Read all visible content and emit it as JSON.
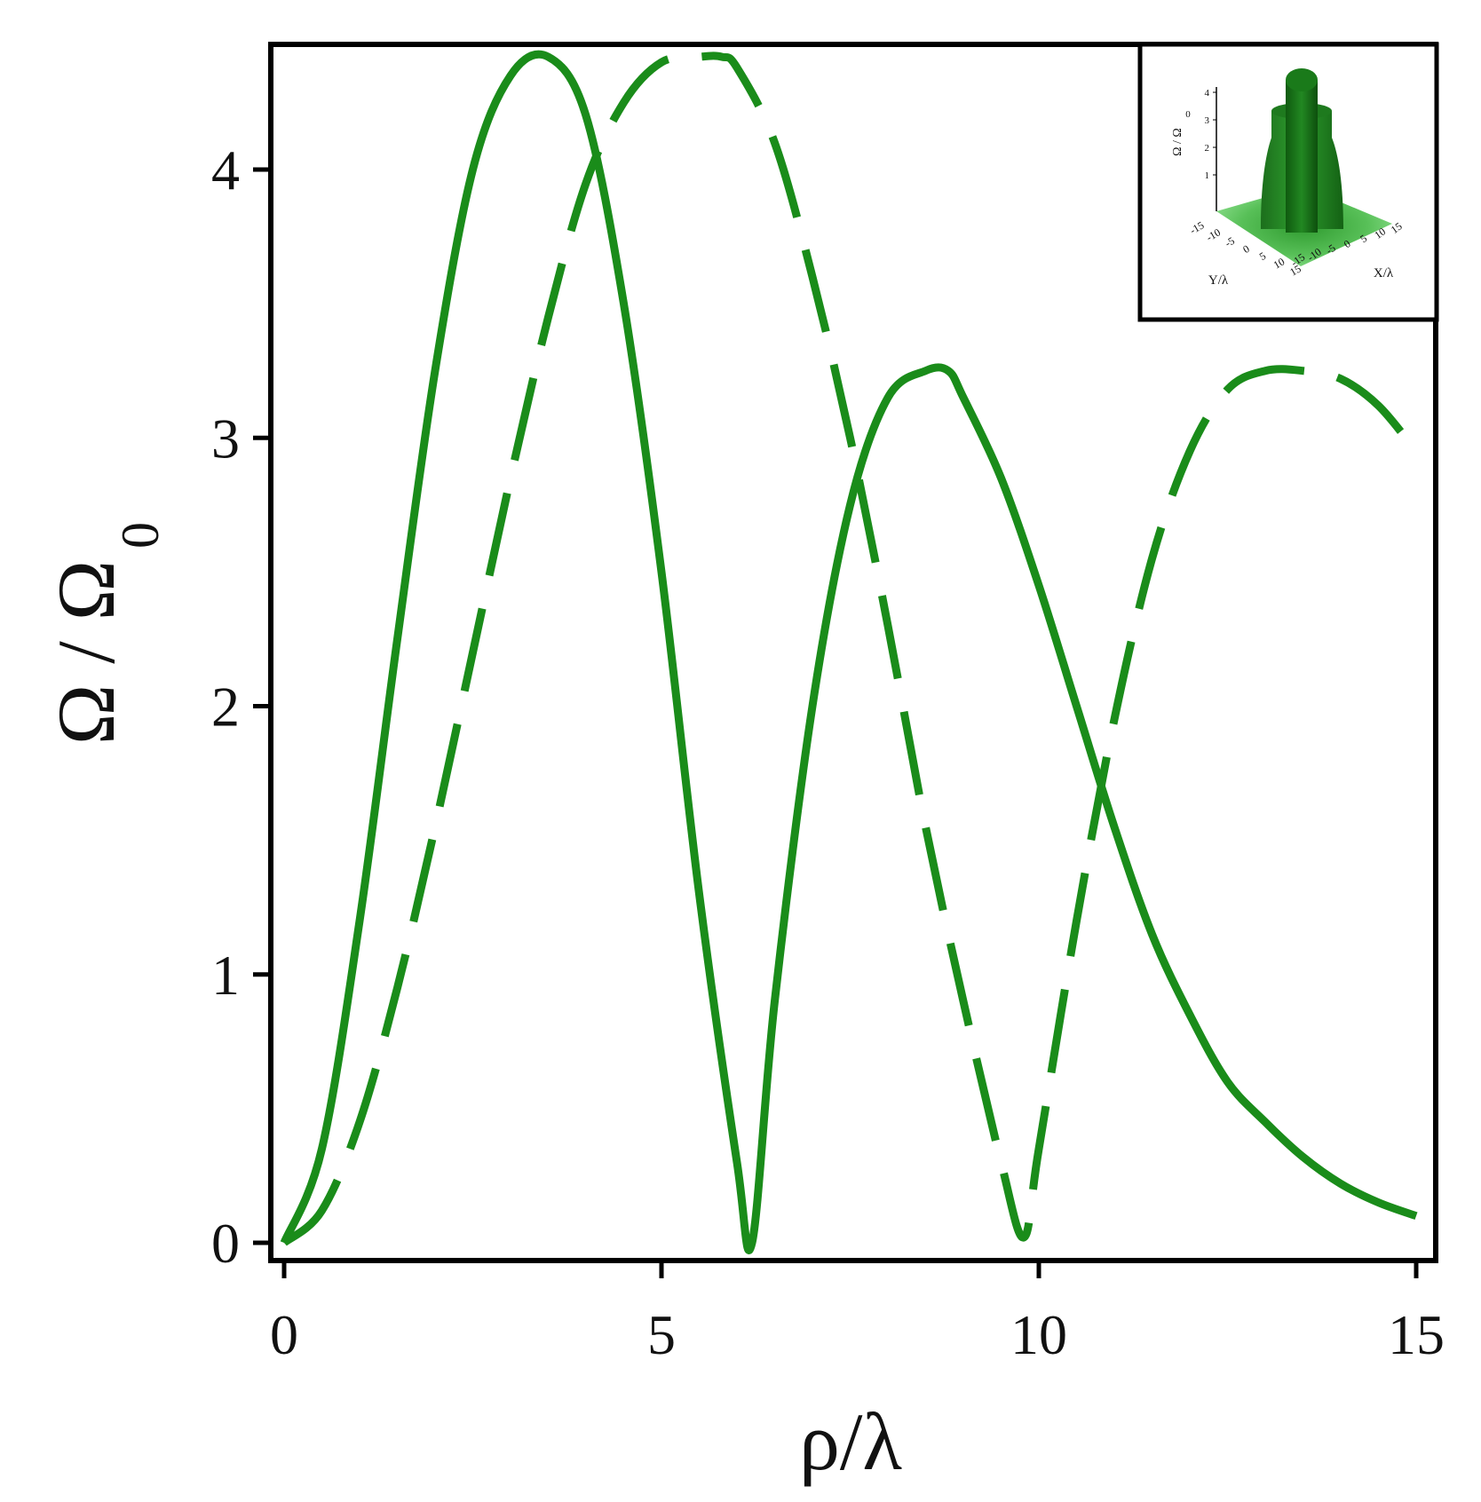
{
  "chart_data": [
    {
      "type": "line",
      "xlabel": "ρ/λ",
      "ylabel_main": "Ω / Ω",
      "ylabel_sub": "0",
      "xlim": [
        0,
        15
      ],
      "ylim": [
        0,
        4.45
      ],
      "x_ticks": [
        "0",
        "5",
        "10",
        "15"
      ],
      "y_ticks": [
        "0",
        "1",
        "2",
        "3",
        "4"
      ],
      "grid": false,
      "legend": "none",
      "color": "#1a8c1a",
      "series": [
        {
          "style": "solid",
          "x": [
            0,
            0.5,
            1,
            1.5,
            2,
            2.5,
            3,
            3.5,
            4,
            4.5,
            5,
            5.5,
            6,
            6.2,
            6.5,
            7,
            7.5,
            8,
            8.5,
            8.8,
            9,
            9.5,
            10,
            10.5,
            11,
            11.5,
            12,
            12.5,
            13,
            13.5,
            14,
            14.5,
            15
          ],
          "y": [
            0,
            0.35,
            1.2,
            2.25,
            3.25,
            4.0,
            4.35,
            4.42,
            4.2,
            3.5,
            2.5,
            1.3,
            0.3,
            0.0,
            0.9,
            2.0,
            2.75,
            3.15,
            3.25,
            3.25,
            3.15,
            2.85,
            2.45,
            2.0,
            1.55,
            1.15,
            0.85,
            0.6,
            0.45,
            0.32,
            0.22,
            0.15,
            0.1
          ]
        },
        {
          "style": "dashed",
          "x": [
            0,
            0.5,
            1,
            1.5,
            2,
            2.5,
            3,
            3.5,
            4,
            4.5,
            5,
            5.5,
            5.8,
            6,
            6.5,
            7,
            7.5,
            8,
            8.5,
            9,
            9.5,
            9.8,
            10,
            10.5,
            11,
            11.5,
            12,
            12.5,
            13,
            13.5,
            14,
            14.5,
            15
          ],
          "y": [
            0,
            0.12,
            0.45,
            0.95,
            1.55,
            2.2,
            2.85,
            3.45,
            3.95,
            4.25,
            4.4,
            4.42,
            4.42,
            4.38,
            4.1,
            3.6,
            3.0,
            2.3,
            1.55,
            0.9,
            0.3,
            0.02,
            0.35,
            1.2,
            1.95,
            2.55,
            2.95,
            3.18,
            3.25,
            3.25,
            3.22,
            3.12,
            2.95
          ]
        }
      ]
    },
    {
      "type": "surface3d",
      "zlabel_main": "Ω / Ω",
      "zlabel_sub": "0",
      "xlabel": "X/λ",
      "ylabel": "Y/λ",
      "x_ticks": [
        "-15",
        "-10",
        "-5",
        "0",
        "5",
        "10",
        "15"
      ],
      "y_ticks": [
        "-15",
        "-10",
        "-5",
        "0",
        "5",
        "10",
        "15"
      ],
      "z_ticks": [
        "1",
        "2",
        "3",
        "4"
      ],
      "color": "#1a8c1a"
    }
  ]
}
